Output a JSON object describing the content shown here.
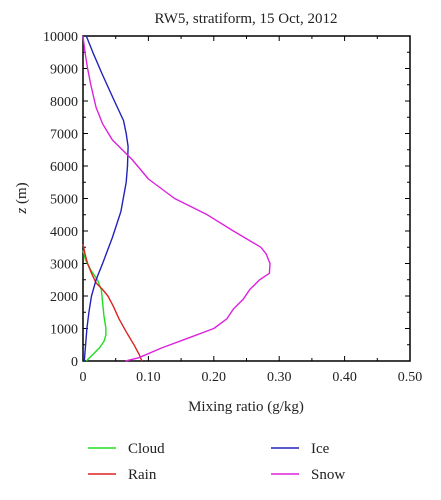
{
  "chart_data": {
    "type": "line",
    "title": "RW5, stratiform, 15 Oct, 2012",
    "xlabel": "Mixing ratio (g/kg)",
    "ylabel_var": "z",
    "ylabel_unit": " (m)",
    "xlim": [
      0,
      0.5
    ],
    "ylim": [
      0,
      10000
    ],
    "xticks": [
      "0",
      "0.10",
      "0.20",
      "0.30",
      "0.40",
      "0.50"
    ],
    "xtick_values": [
      0,
      0.1,
      0.2,
      0.3,
      0.4,
      0.5
    ],
    "yticks": [
      "0",
      "1000",
      "2000",
      "3000",
      "4000",
      "5000",
      "6000",
      "7000",
      "8000",
      "9000",
      "10000"
    ],
    "ytick_values": [
      0,
      1000,
      2000,
      3000,
      4000,
      5000,
      6000,
      7000,
      8000,
      9000,
      10000
    ],
    "grid": false,
    "legend_position": "bottom",
    "series": [
      {
        "name": "Cloud",
        "color": "#22dd22",
        "points": [
          [
            0.005,
            0
          ],
          [
            0.015,
            200
          ],
          [
            0.025,
            400
          ],
          [
            0.032,
            600
          ],
          [
            0.035,
            800
          ],
          [
            0.035,
            1000
          ],
          [
            0.032,
            1400
          ],
          [
            0.03,
            1800
          ],
          [
            0.028,
            2200
          ],
          [
            0.022,
            2500
          ],
          [
            0.012,
            2800
          ],
          [
            0.004,
            3100
          ],
          [
            0.0,
            3400
          ]
        ]
      },
      {
        "name": "Rain",
        "color": "#dd2222",
        "points": [
          [
            0.09,
            0
          ],
          [
            0.086,
            200
          ],
          [
            0.078,
            500
          ],
          [
            0.066,
            900
          ],
          [
            0.055,
            1300
          ],
          [
            0.046,
            1700
          ],
          [
            0.038,
            2000
          ],
          [
            0.03,
            2200
          ],
          [
            0.02,
            2400
          ],
          [
            0.013,
            2700
          ],
          [
            0.007,
            3000
          ],
          [
            0.003,
            3300
          ],
          [
            0.0,
            3600
          ]
        ]
      },
      {
        "name": "Ice",
        "color": "#2222bb",
        "points": [
          [
            0.002,
            0
          ],
          [
            0.004,
            500
          ],
          [
            0.006,
            1000
          ],
          [
            0.009,
            1500
          ],
          [
            0.013,
            2000
          ],
          [
            0.02,
            2500
          ],
          [
            0.03,
            3000
          ],
          [
            0.045,
            3800
          ],
          [
            0.058,
            4600
          ],
          [
            0.066,
            5500
          ],
          [
            0.068,
            6000
          ],
          [
            0.069,
            6600
          ],
          [
            0.066,
            7000
          ],
          [
            0.062,
            7400
          ],
          [
            0.048,
            8000
          ],
          [
            0.03,
            8800
          ],
          [
            0.015,
            9500
          ],
          [
            0.005,
            10000
          ]
        ]
      },
      {
        "name": "Snow",
        "color": "#dd22dd",
        "points": [
          [
            0.065,
            0
          ],
          [
            0.085,
            100
          ],
          [
            0.12,
            400
          ],
          [
            0.16,
            700
          ],
          [
            0.2,
            1000
          ],
          [
            0.22,
            1300
          ],
          [
            0.23,
            1600
          ],
          [
            0.245,
            1900
          ],
          [
            0.255,
            2200
          ],
          [
            0.27,
            2500
          ],
          [
            0.285,
            2700
          ],
          [
            0.286,
            3000
          ],
          [
            0.28,
            3300
          ],
          [
            0.272,
            3500
          ],
          [
            0.23,
            4000
          ],
          [
            0.19,
            4500
          ],
          [
            0.14,
            5000
          ],
          [
            0.1,
            5600
          ],
          [
            0.075,
            6200
          ],
          [
            0.06,
            6500
          ],
          [
            0.045,
            6800
          ],
          [
            0.03,
            7300
          ],
          [
            0.02,
            7800
          ],
          [
            0.012,
            8500
          ],
          [
            0.007,
            9000
          ],
          [
            0.003,
            9500
          ],
          [
            0.0,
            10000
          ]
        ]
      }
    ]
  }
}
